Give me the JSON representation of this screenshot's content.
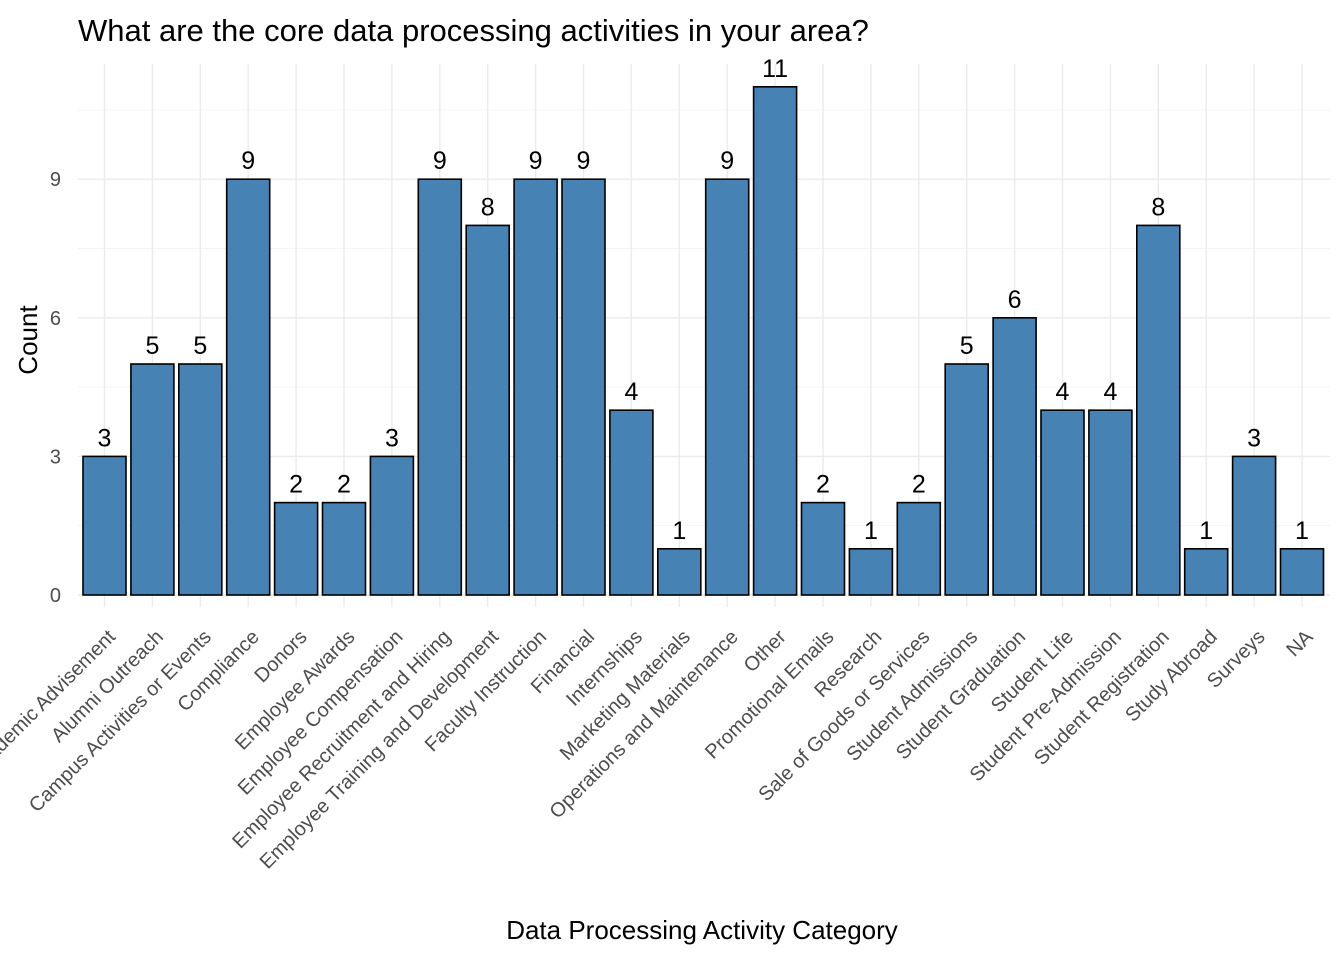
{
  "chart_data": {
    "type": "bar",
    "title": "What are the core data processing activities in your area?",
    "xlabel": "Data Processing Activity Category",
    "ylabel": "Count",
    "categories": [
      "Academic Advisement",
      "Alumni Outreach",
      "Campus Activities or Events",
      "Compliance",
      "Donors",
      "Employee Awards",
      "Employee Compensation",
      "Employee Recruitment and Hiring",
      "Employee Training and Development",
      "Faculty Instruction",
      "Financial",
      "Internships",
      "Marketing Materials",
      "Operations and Maintenance",
      "Other",
      "Promotional Emails",
      "Research",
      "Sale of Goods or Services",
      "Student Admissions",
      "Student Graduation",
      "Student Life",
      "Student Pre-Admission",
      "Student Registration",
      "Study Abroad",
      "Surveys",
      "NA"
    ],
    "values": [
      3,
      5,
      5,
      9,
      2,
      2,
      3,
      9,
      8,
      9,
      9,
      4,
      1,
      9,
      11,
      2,
      1,
      2,
      5,
      6,
      4,
      4,
      8,
      1,
      3,
      1
    ],
    "y_ticks": [
      0,
      3,
      6,
      9
    ],
    "ylim": [
      0,
      11.5
    ],
    "grid": true,
    "legend": "none",
    "bar_color": "#4682b4",
    "bar_outline": "#000000"
  }
}
